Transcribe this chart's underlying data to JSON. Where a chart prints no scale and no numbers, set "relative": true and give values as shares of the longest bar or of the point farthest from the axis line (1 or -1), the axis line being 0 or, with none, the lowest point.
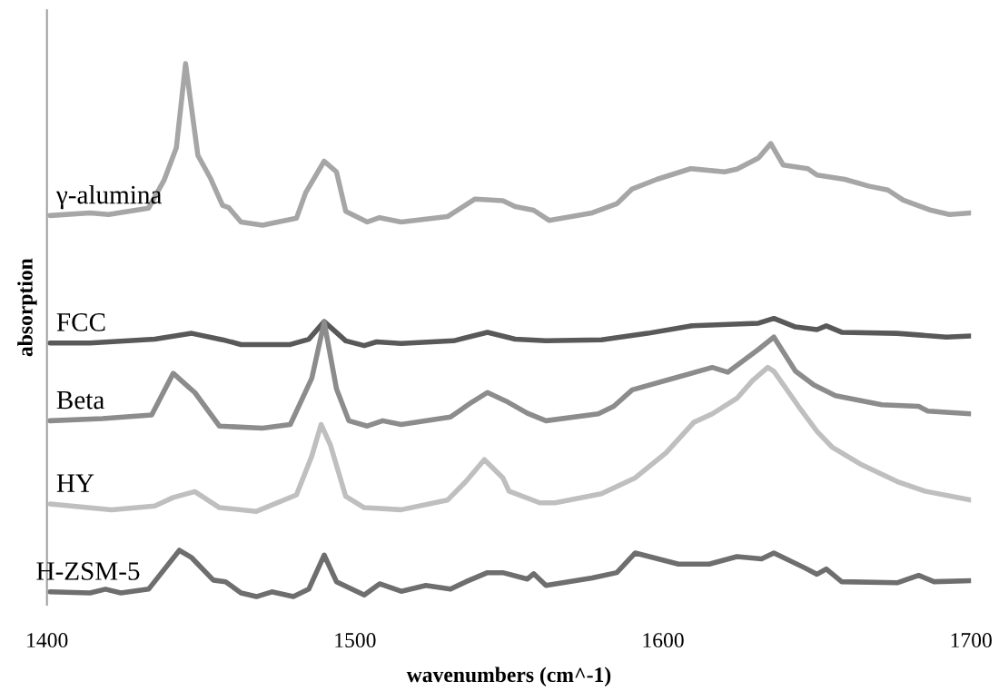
{
  "chart_data": {
    "type": "line",
    "relative": true,
    "xlabel": "wavenumbers (cm^-1)",
    "ylabel": "absorption",
    "xlim": [
      1400,
      1700
    ],
    "xticks": [
      1400,
      1500,
      1600,
      1700
    ],
    "grid": false,
    "legend": false,
    "marker": "none",
    "line_style": "solid",
    "series": [
      {
        "name": "γ-alumina",
        "color": "#a6a6a6",
        "x": [
          1401,
          1414,
          1420,
          1433,
          1438,
          1442,
          1445,
          1449,
          1453,
          1457,
          1459,
          1463,
          1470,
          1481,
          1484,
          1490,
          1494,
          1497,
          1504,
          1508,
          1515,
          1530,
          1539,
          1548,
          1552,
          1558,
          1563,
          1577,
          1585,
          1590,
          1598,
          1609,
          1620,
          1624,
          1631,
          1635,
          1639,
          1647,
          1650,
          1659,
          1667,
          1673,
          1678,
          1687,
          1693,
          1700
        ],
        "values": [
          0.715,
          0.72,
          0.717,
          0.729,
          0.781,
          0.842,
          1.0,
          0.828,
          0.786,
          0.734,
          0.73,
          0.703,
          0.697,
          0.71,
          0.758,
          0.817,
          0.797,
          0.723,
          0.703,
          0.711,
          0.703,
          0.713,
          0.746,
          0.743,
          0.732,
          0.725,
          0.706,
          0.72,
          0.737,
          0.765,
          0.783,
          0.803,
          0.797,
          0.802,
          0.823,
          0.85,
          0.81,
          0.803,
          0.791,
          0.783,
          0.77,
          0.763,
          0.744,
          0.725,
          0.717,
          0.72
        ]
      },
      {
        "name": "FCC",
        "color": "#595959",
        "x": [
          1401,
          1414,
          1435,
          1447,
          1457,
          1463,
          1479,
          1485,
          1490,
          1497,
          1503,
          1507,
          1515,
          1532,
          1543,
          1552,
          1562,
          1580,
          1595,
          1609,
          1631,
          1636,
          1643,
          1650,
          1653,
          1658,
          1676,
          1692,
          1700
        ],
        "values": [
          0.476,
          0.476,
          0.483,
          0.494,
          0.482,
          0.473,
          0.473,
          0.483,
          0.516,
          0.48,
          0.471,
          0.478,
          0.475,
          0.48,
          0.496,
          0.483,
          0.48,
          0.482,
          0.494,
          0.508,
          0.513,
          0.522,
          0.506,
          0.501,
          0.508,
          0.496,
          0.494,
          0.487,
          0.489
        ]
      },
      {
        "name": "Beta",
        "color": "#8c8c8c",
        "x": [
          1401,
          1418,
          1434,
          1441,
          1446,
          1448,
          1456,
          1470,
          1479,
          1486,
          1490,
          1494,
          1498,
          1504,
          1509,
          1515,
          1531,
          1538,
          1543,
          1549,
          1556,
          1562,
          1579,
          1584,
          1590,
          1603,
          1616,
          1621,
          1631,
          1636,
          1643,
          1649,
          1656,
          1671,
          1683,
          1686,
          1700
        ],
        "values": [
          0.33,
          0.334,
          0.341,
          0.419,
          0.393,
          0.383,
          0.32,
          0.316,
          0.323,
          0.41,
          0.515,
          0.39,
          0.33,
          0.32,
          0.33,
          0.323,
          0.337,
          0.365,
          0.383,
          0.367,
          0.344,
          0.33,
          0.343,
          0.357,
          0.388,
          0.409,
          0.43,
          0.421,
          0.464,
          0.487,
          0.423,
          0.397,
          0.377,
          0.36,
          0.357,
          0.348,
          0.343
        ]
      },
      {
        "name": "HY",
        "color": "#bfbfbf",
        "x": [
          1401,
          1421,
          1435,
          1441,
          1448,
          1456,
          1468,
          1481,
          1486,
          1489,
          1492,
          1497,
          1503,
          1515,
          1530,
          1536,
          1542,
          1548,
          1550,
          1560,
          1565,
          1580,
          1591,
          1601,
          1610,
          1616,
          1624,
          1629,
          1634,
          1636,
          1644,
          1650,
          1655,
          1664,
          1676,
          1685,
          1700
        ],
        "values": [
          0.174,
          0.163,
          0.17,
          0.186,
          0.197,
          0.167,
          0.16,
          0.191,
          0.264,
          0.323,
          0.285,
          0.188,
          0.167,
          0.163,
          0.181,
          0.216,
          0.257,
          0.223,
          0.198,
          0.176,
          0.176,
          0.193,
          0.223,
          0.27,
          0.327,
          0.343,
          0.372,
          0.405,
          0.43,
          0.423,
          0.357,
          0.31,
          0.28,
          0.249,
          0.216,
          0.198,
          0.181
        ]
      },
      {
        "name": "H-ZSM-5",
        "color": "#6e6e6e",
        "x": [
          1401,
          1414,
          1419,
          1424,
          1433,
          1443,
          1447,
          1454,
          1458,
          1463,
          1468,
          1473,
          1480,
          1485,
          1490,
          1494,
          1503,
          1508,
          1515,
          1523,
          1531,
          1536,
          1543,
          1548,
          1556,
          1558,
          1562,
          1577,
          1585,
          1591,
          1605,
          1615,
          1624,
          1632,
          1636,
          1646,
          1650,
          1653,
          1658,
          1676,
          1683,
          1688,
          1700
        ],
        "values": [
          0.009,
          0.007,
          0.014,
          0.007,
          0.014,
          0.087,
          0.073,
          0.031,
          0.028,
          0.007,
          0,
          0.009,
          0,
          0.014,
          0.078,
          0.028,
          0.003,
          0.024,
          0.01,
          0.021,
          0.014,
          0.028,
          0.045,
          0.045,
          0.033,
          0.043,
          0.021,
          0.035,
          0.045,
          0.082,
          0.061,
          0.061,
          0.075,
          0.071,
          0.082,
          0.054,
          0.042,
          0.052,
          0.028,
          0.026,
          0.04,
          0.028,
          0.03
        ]
      }
    ]
  }
}
